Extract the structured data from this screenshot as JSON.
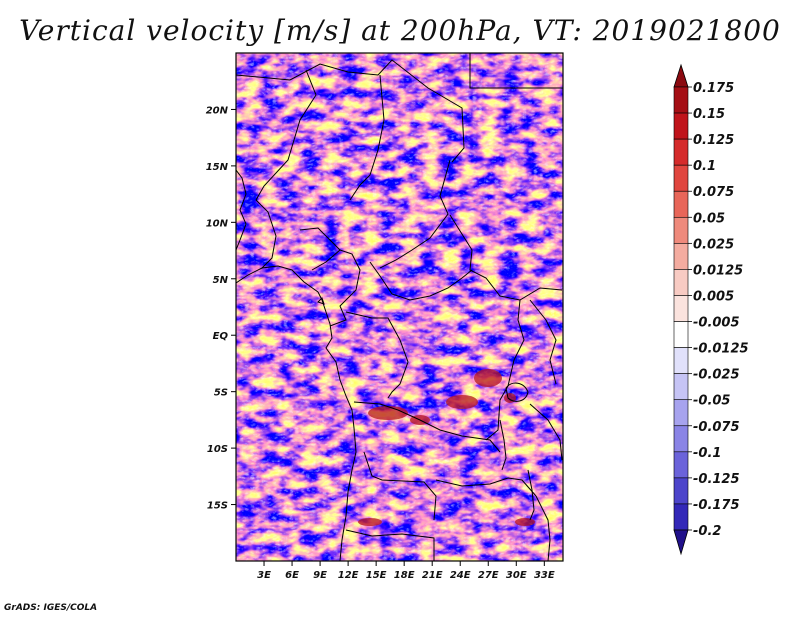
{
  "title": "Vertical velocity [m/s] at 200hPa, VT: 2019021800",
  "footer": "GrADS: IGES/COLA",
  "map": {
    "lon_range": [
      0,
      35
    ],
    "lat_range": [
      -20,
      25
    ],
    "lon_ticks": [
      {
        "value": 3,
        "label": "3E"
      },
      {
        "value": 6,
        "label": "6E"
      },
      {
        "value": 9,
        "label": "9E"
      },
      {
        "value": 12,
        "label": "12E"
      },
      {
        "value": 15,
        "label": "15E"
      },
      {
        "value": 18,
        "label": "18E"
      },
      {
        "value": 21,
        "label": "21E"
      },
      {
        "value": 24,
        "label": "24E"
      },
      {
        "value": 27,
        "label": "27E"
      },
      {
        "value": 30,
        "label": "30E"
      },
      {
        "value": 33,
        "label": "33E"
      }
    ],
    "lat_ticks": [
      {
        "value": 20,
        "label": "20N"
      },
      {
        "value": 15,
        "label": "15N"
      },
      {
        "value": 10,
        "label": "10N"
      },
      {
        "value": 5,
        "label": "5N"
      },
      {
        "value": 0,
        "label": "EQ"
      },
      {
        "value": -5,
        "label": "5S"
      },
      {
        "value": -10,
        "label": "10S"
      },
      {
        "value": -15,
        "label": "15S"
      }
    ]
  },
  "colorbar": {
    "levels": [
      {
        "label": "0.175",
        "color": "#a50f15"
      },
      {
        "label": "0.15",
        "color": "#c0141b"
      },
      {
        "label": "0.125",
        "color": "#d52b2b"
      },
      {
        "label": "0.1",
        "color": "#e0463f"
      },
      {
        "label": "0.075",
        "color": "#e86659"
      },
      {
        "label": "0.05",
        "color": "#ef8a7c"
      },
      {
        "label": "0.025",
        "color": "#f4aca0"
      },
      {
        "label": "0.0125",
        "color": "#f8cbc3"
      },
      {
        "label": "0.005",
        "color": "#fbe3de"
      },
      {
        "label": "-0.005",
        "color": "#ffffff"
      },
      {
        "label": "-0.0125",
        "color": "#e1e1fb"
      },
      {
        "label": "-0.025",
        "color": "#c6c4f5"
      },
      {
        "label": "-0.05",
        "color": "#a7a3ee"
      },
      {
        "label": "-0.075",
        "color": "#8a84e6"
      },
      {
        "label": "-0.1",
        "color": "#6b63da"
      },
      {
        "label": "-0.125",
        "color": "#4d45cb"
      },
      {
        "label": "-0.175",
        "color": "#3328b8"
      },
      {
        "label": "-0.2",
        "color": "#2712a0"
      }
    ],
    "top_arrow_color": "#8b0a10",
    "bottom_arrow_color": "#20108a"
  }
}
